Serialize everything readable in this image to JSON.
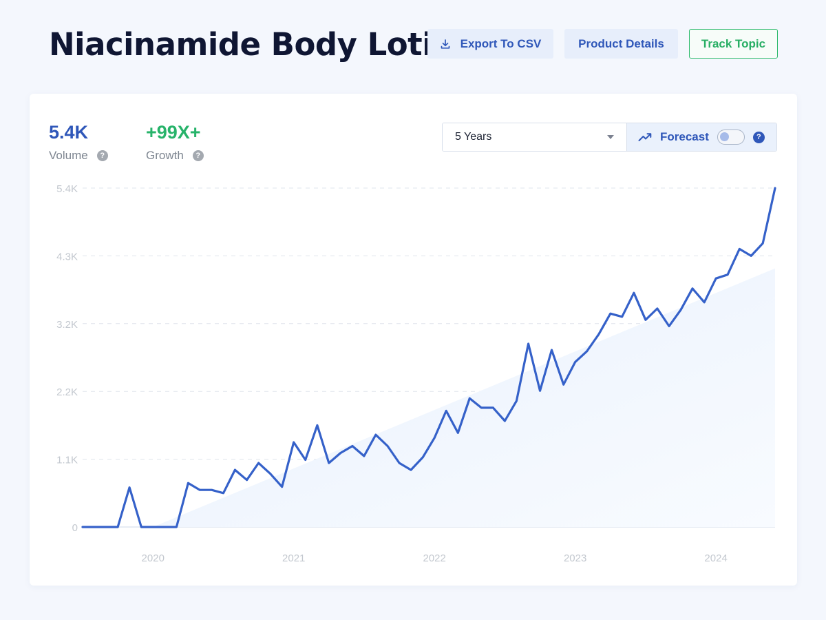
{
  "header": {
    "title": "Niacinamide Body Lotion",
    "export_label": "Export To CSV",
    "details_label": "Product Details",
    "track_label": "Track Topic"
  },
  "stats": {
    "volume": {
      "value": "5.4K",
      "label": "Volume"
    },
    "growth": {
      "value": "+99X+",
      "label": "Growth"
    }
  },
  "controls": {
    "range_selected": "5 Years",
    "forecast_label": "Forecast",
    "forecast_enabled": false
  },
  "colors": {
    "accent": "#2f57b9",
    "line": "#3561c9",
    "growth": "#27b36a",
    "trend_fill": "#e9f1fc"
  },
  "icons": {
    "export": "download-icon",
    "forecast": "trending-up-icon",
    "help": "question-icon",
    "dropdown": "chevron-down-icon"
  },
  "chart_data": {
    "type": "line",
    "title": "",
    "xlabel": "",
    "ylabel": "",
    "x_tick_labels": [
      "2020",
      "2021",
      "2022",
      "2023",
      "2024"
    ],
    "y_tick_labels": [
      "0",
      "1.1K",
      "2.2K",
      "3.2K",
      "4.3K",
      "5.4K"
    ],
    "y_tick_values": [
      0,
      1080,
      2160,
      3240,
      4320,
      5400
    ],
    "ylim": [
      0,
      5400
    ],
    "xlim": [
      2019.5,
      2024.42
    ],
    "grid": true,
    "series": [
      {
        "x": [
          2019.5,
          2019.583,
          2019.667,
          2019.75,
          2019.833,
          2019.917,
          2020.0,
          2020.083,
          2020.167,
          2020.25,
          2020.333,
          2020.417,
          2020.5,
          2020.583,
          2020.667,
          2020.75,
          2020.833,
          2020.917,
          2021.0,
          2021.083,
          2021.167,
          2021.25,
          2021.333,
          2021.417,
          2021.5,
          2021.583,
          2021.667,
          2021.75,
          2021.833,
          2021.917,
          2022.0,
          2022.083,
          2022.167,
          2022.25,
          2022.333,
          2022.417,
          2022.5,
          2022.583,
          2022.667,
          2022.75,
          2022.833,
          2022.917,
          2023.0,
          2023.083,
          2023.167,
          2023.25,
          2023.333,
          2023.417,
          2023.5,
          2023.583,
          2023.667,
          2023.75,
          2023.833,
          2023.917,
          2024.0,
          2024.083,
          2024.167,
          2024.25,
          2024.333,
          2024.42
        ],
        "values": [
          0,
          0,
          0,
          0,
          630,
          0,
          0,
          0,
          0,
          700,
          590,
          590,
          540,
          910,
          750,
          1020,
          850,
          640,
          1350,
          1070,
          1620,
          1020,
          1180,
          1290,
          1130,
          1470,
          1290,
          1020,
          910,
          1110,
          1420,
          1850,
          1500,
          2050,
          1900,
          1900,
          1690,
          2010,
          2920,
          2170,
          2820,
          2270,
          2630,
          2800,
          3070,
          3400,
          3350,
          3730,
          3300,
          3480,
          3200,
          3460,
          3800,
          3580,
          3960,
          4020,
          4430,
          4320,
          4520,
          5400
        ]
      }
    ],
    "trend": {
      "x": [
        2020.0,
        2024.42
      ],
      "values": [
        0,
        4120
      ]
    }
  }
}
